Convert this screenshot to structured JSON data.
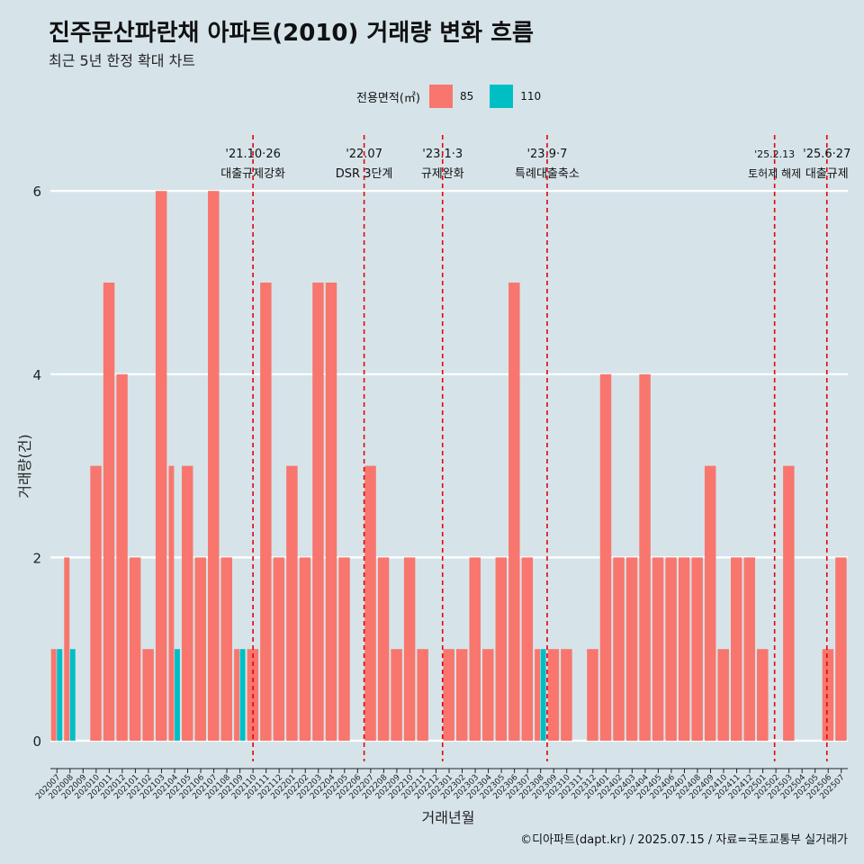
{
  "title": "진주문산파란채 아파트(2010) 거래량 변화 흐름",
  "subtitle": "최근 5년 한정 확대 차트",
  "caption": "©디아파트(dapt.kr) / 2025.07.15 / 자료=국토교통부 실거래가",
  "legend": {
    "title": "전용면적(㎡)",
    "items": [
      {
        "label": "85",
        "color": "#F8766D"
      },
      {
        "label": "110",
        "color": "#00BFC4"
      }
    ]
  },
  "chart_data": {
    "type": "bar",
    "stacking": "dodge",
    "xlabel": "거래년월",
    "ylabel": "거래량(건)",
    "ylim": [
      0,
      6
    ],
    "yticks": [
      0,
      2,
      4,
      6
    ],
    "grid": true,
    "legend_position": "top",
    "categories": [
      "202007",
      "202008",
      "202009",
      "202010",
      "202011",
      "202012",
      "202101",
      "202102",
      "202103",
      "202104",
      "202105",
      "202106",
      "202107",
      "202108",
      "202109",
      "202110",
      "202111",
      "202112",
      "202201",
      "202202",
      "202203",
      "202204",
      "202205",
      "202206",
      "202207",
      "202208",
      "202209",
      "202210",
      "202211",
      "202212",
      "202301",
      "202302",
      "202303",
      "202304",
      "202305",
      "202306",
      "202307",
      "202308",
      "202309",
      "202310",
      "202311",
      "202312",
      "202401",
      "202402",
      "202403",
      "202404",
      "202405",
      "202406",
      "202407",
      "202408",
      "202409",
      "202410",
      "202411",
      "202412",
      "202501",
      "202502",
      "202503",
      "202504",
      "202505",
      "202506",
      "202507"
    ],
    "series": [
      {
        "name": "85",
        "color": "#F8766D",
        "values": [
          1,
          2,
          0,
          3,
          5,
          4,
          2,
          1,
          6,
          3,
          3,
          2,
          6,
          2,
          1,
          1,
          5,
          2,
          3,
          2,
          5,
          5,
          2,
          0,
          3,
          2,
          1,
          2,
          1,
          0,
          1,
          1,
          2,
          1,
          2,
          5,
          2,
          1,
          1,
          1,
          0,
          1,
          4,
          2,
          2,
          4,
          2,
          2,
          2,
          2,
          3,
          1,
          2,
          2,
          1,
          0,
          3,
          0,
          0,
          1,
          2
        ]
      },
      {
        "name": "110",
        "color": "#00BFC4",
        "values": [
          1,
          1,
          0,
          0,
          0,
          0,
          0,
          0,
          0,
          1,
          0,
          0,
          0,
          0,
          1,
          0,
          0,
          0,
          0,
          0,
          0,
          0,
          0,
          0,
          0,
          0,
          0,
          0,
          0,
          0,
          0,
          0,
          0,
          0,
          0,
          0,
          0,
          1,
          0,
          0,
          0,
          0,
          0,
          0,
          0,
          0,
          0,
          0,
          0,
          0,
          0,
          0,
          0,
          0,
          0,
          0,
          0,
          0,
          0,
          0,
          0
        ]
      }
    ],
    "events": [
      {
        "index": 15.5,
        "date": "'21.10·26",
        "label": "대출규제강화"
      },
      {
        "index": 24,
        "date": "'22.07",
        "label": "DSR 3단계"
      },
      {
        "index": 30,
        "date": "'23.1·3",
        "label": "규제완화"
      },
      {
        "index": 38,
        "date": "'23.9·7",
        "label": "특례대출축소"
      },
      {
        "index": 55.4,
        "date": "'25.2.13",
        "label": "토허제 해제"
      },
      {
        "index": 59.4,
        "date": "'25.6·27",
        "label": "대출규제"
      }
    ]
  }
}
